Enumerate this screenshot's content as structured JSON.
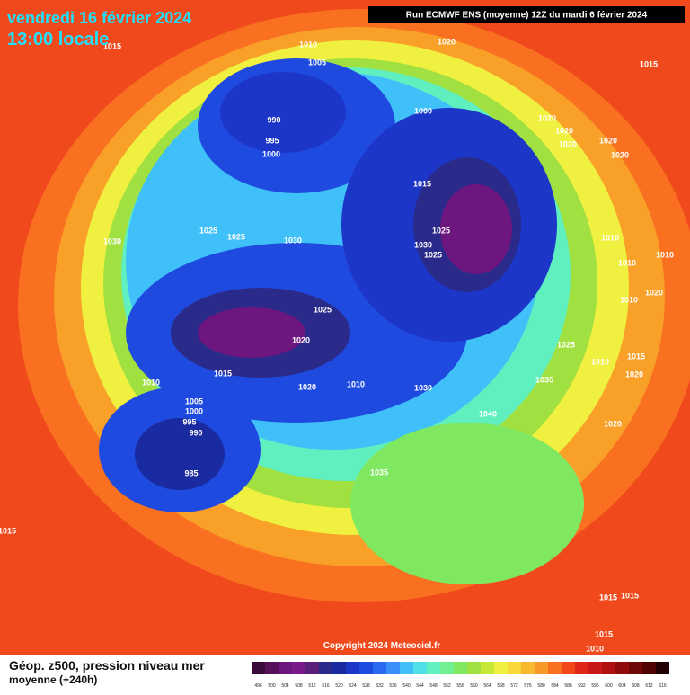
{
  "header": {
    "date": "vendredi 16 février 2024",
    "time": "13:00 locale",
    "run": "Run ECMWF ENS (moyenne) 12Z du mardi 6 février 2024"
  },
  "copyright": "Copyright 2024 Meteociel.fr",
  "caption": {
    "line1": "Géop. z500, pression niveau mer",
    "line2": "moyenne  (+240h)"
  },
  "isobars": [
    "1015",
    "1010",
    "1005",
    "1020",
    "1015",
    "990",
    "995",
    "1000",
    "1000",
    "1020",
    "1020",
    "1020",
    "1020",
    "1020",
    "1015",
    "1030",
    "1025",
    "1025",
    "1030",
    "1025",
    "1030",
    "1025",
    "1010",
    "1010",
    "1010",
    "1020",
    "1010",
    "1025",
    "1020",
    "1025",
    "1015",
    "1010",
    "1020",
    "1010",
    "1030",
    "1035",
    "1015",
    "1010",
    "1020",
    "1005",
    "1000",
    "995",
    "990",
    "1040",
    "1020",
    "985",
    "1035",
    "1015",
    "1015",
    "1015",
    "1015",
    "1010"
  ],
  "scale": {
    "values": [
      496,
      500,
      504,
      508,
      512,
      516,
      520,
      524,
      528,
      532,
      536,
      540,
      544,
      548,
      552,
      556,
      560,
      564,
      568,
      572,
      576,
      580,
      584,
      588,
      592,
      596,
      600,
      604,
      608,
      612,
      616
    ],
    "colors": [
      "#3a0a3a",
      "#55105a",
      "#6e1680",
      "#7a1a8a",
      "#5a1f78",
      "#2a2a8a",
      "#1a2aa0",
      "#1c36c8",
      "#1f4ae0",
      "#2a6af0",
      "#3a90f8",
      "#40c0f8",
      "#50e0e8",
      "#60f0c0",
      "#70f090",
      "#80e860",
      "#a0e040",
      "#c8e838",
      "#f0f040",
      "#f8d838",
      "#f8b830",
      "#f89828",
      "#f87020",
      "#f04818",
      "#e02818",
      "#c81818",
      "#b01010",
      "#900c0c",
      "#700808",
      "#500404",
      "#200000"
    ]
  }
}
